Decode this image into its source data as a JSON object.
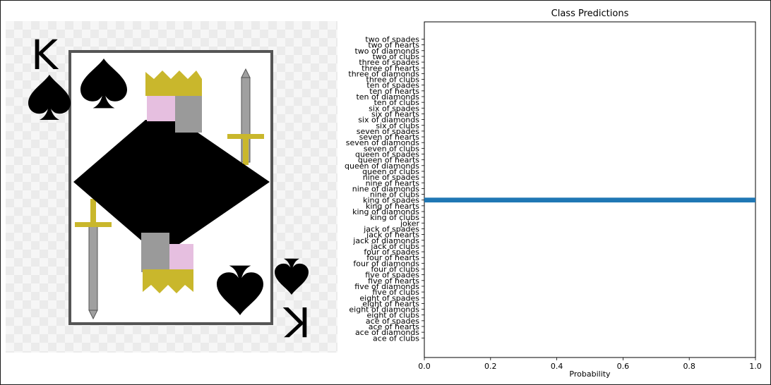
{
  "card_image": {
    "rank_glyph": "K",
    "suit_icon": "spade-icon",
    "colors": {
      "figure_black": "#000000",
      "crown_gold": "#c9b72c",
      "skin_pink": "#e6bfe0",
      "sword_gray": "#a0a0a0",
      "frame_gray": "#555555"
    }
  },
  "chart_data": {
    "type": "bar",
    "orientation": "horizontal",
    "title": "Class Predictions",
    "xlabel": "Probability",
    "ylabel": "",
    "xlim": [
      0.0,
      1.0
    ],
    "xticks": [
      "0.0",
      "0.2",
      "0.4",
      "0.6",
      "0.8",
      "1.0"
    ],
    "grid": false,
    "bar_color": "#1f77b4",
    "categories": [
      "two of spades",
      "two of hearts",
      "two of diamonds",
      "two of clubs",
      "three of spades",
      "three of hearts",
      "three of diamonds",
      "three of clubs",
      "ten of spades",
      "ten of hearts",
      "ten of diamonds",
      "ten of clubs",
      "six of spades",
      "six of hearts",
      "six of diamonds",
      "six of clubs",
      "seven of spades",
      "seven of hearts",
      "seven of diamonds",
      "seven of clubs",
      "queen of spades",
      "queen of hearts",
      "queen of diamonds",
      "queen of clubs",
      "nine of spades",
      "nine of hearts",
      "nine of diamonds",
      "nine of clubs",
      "king of spades",
      "king of hearts",
      "king of diamonds",
      "king of clubs",
      "joker",
      "jack of spades",
      "jack of hearts",
      "jack of diamonds",
      "jack of clubs",
      "four of spades",
      "four of hearts",
      "four of diamonds",
      "four of clubs",
      "five of spades",
      "five of hearts",
      "five of diamonds",
      "five of clubs",
      "eight of spades",
      "eight of hearts",
      "eight of diamonds",
      "eight of clubs",
      "ace of spades",
      "ace of hearts",
      "ace of diamonds",
      "ace of clubs"
    ],
    "values": [
      0,
      0,
      0,
      0,
      0,
      0,
      0,
      0,
      0,
      0,
      0,
      0,
      0,
      0,
      0,
      0,
      0,
      0,
      0,
      0,
      0,
      0,
      0,
      0,
      0,
      0,
      0,
      0,
      1.0,
      0,
      0,
      0,
      0,
      0,
      0,
      0,
      0,
      0,
      0,
      0,
      0,
      0,
      0,
      0,
      0,
      0,
      0,
      0,
      0,
      0,
      0,
      0,
      0
    ]
  }
}
